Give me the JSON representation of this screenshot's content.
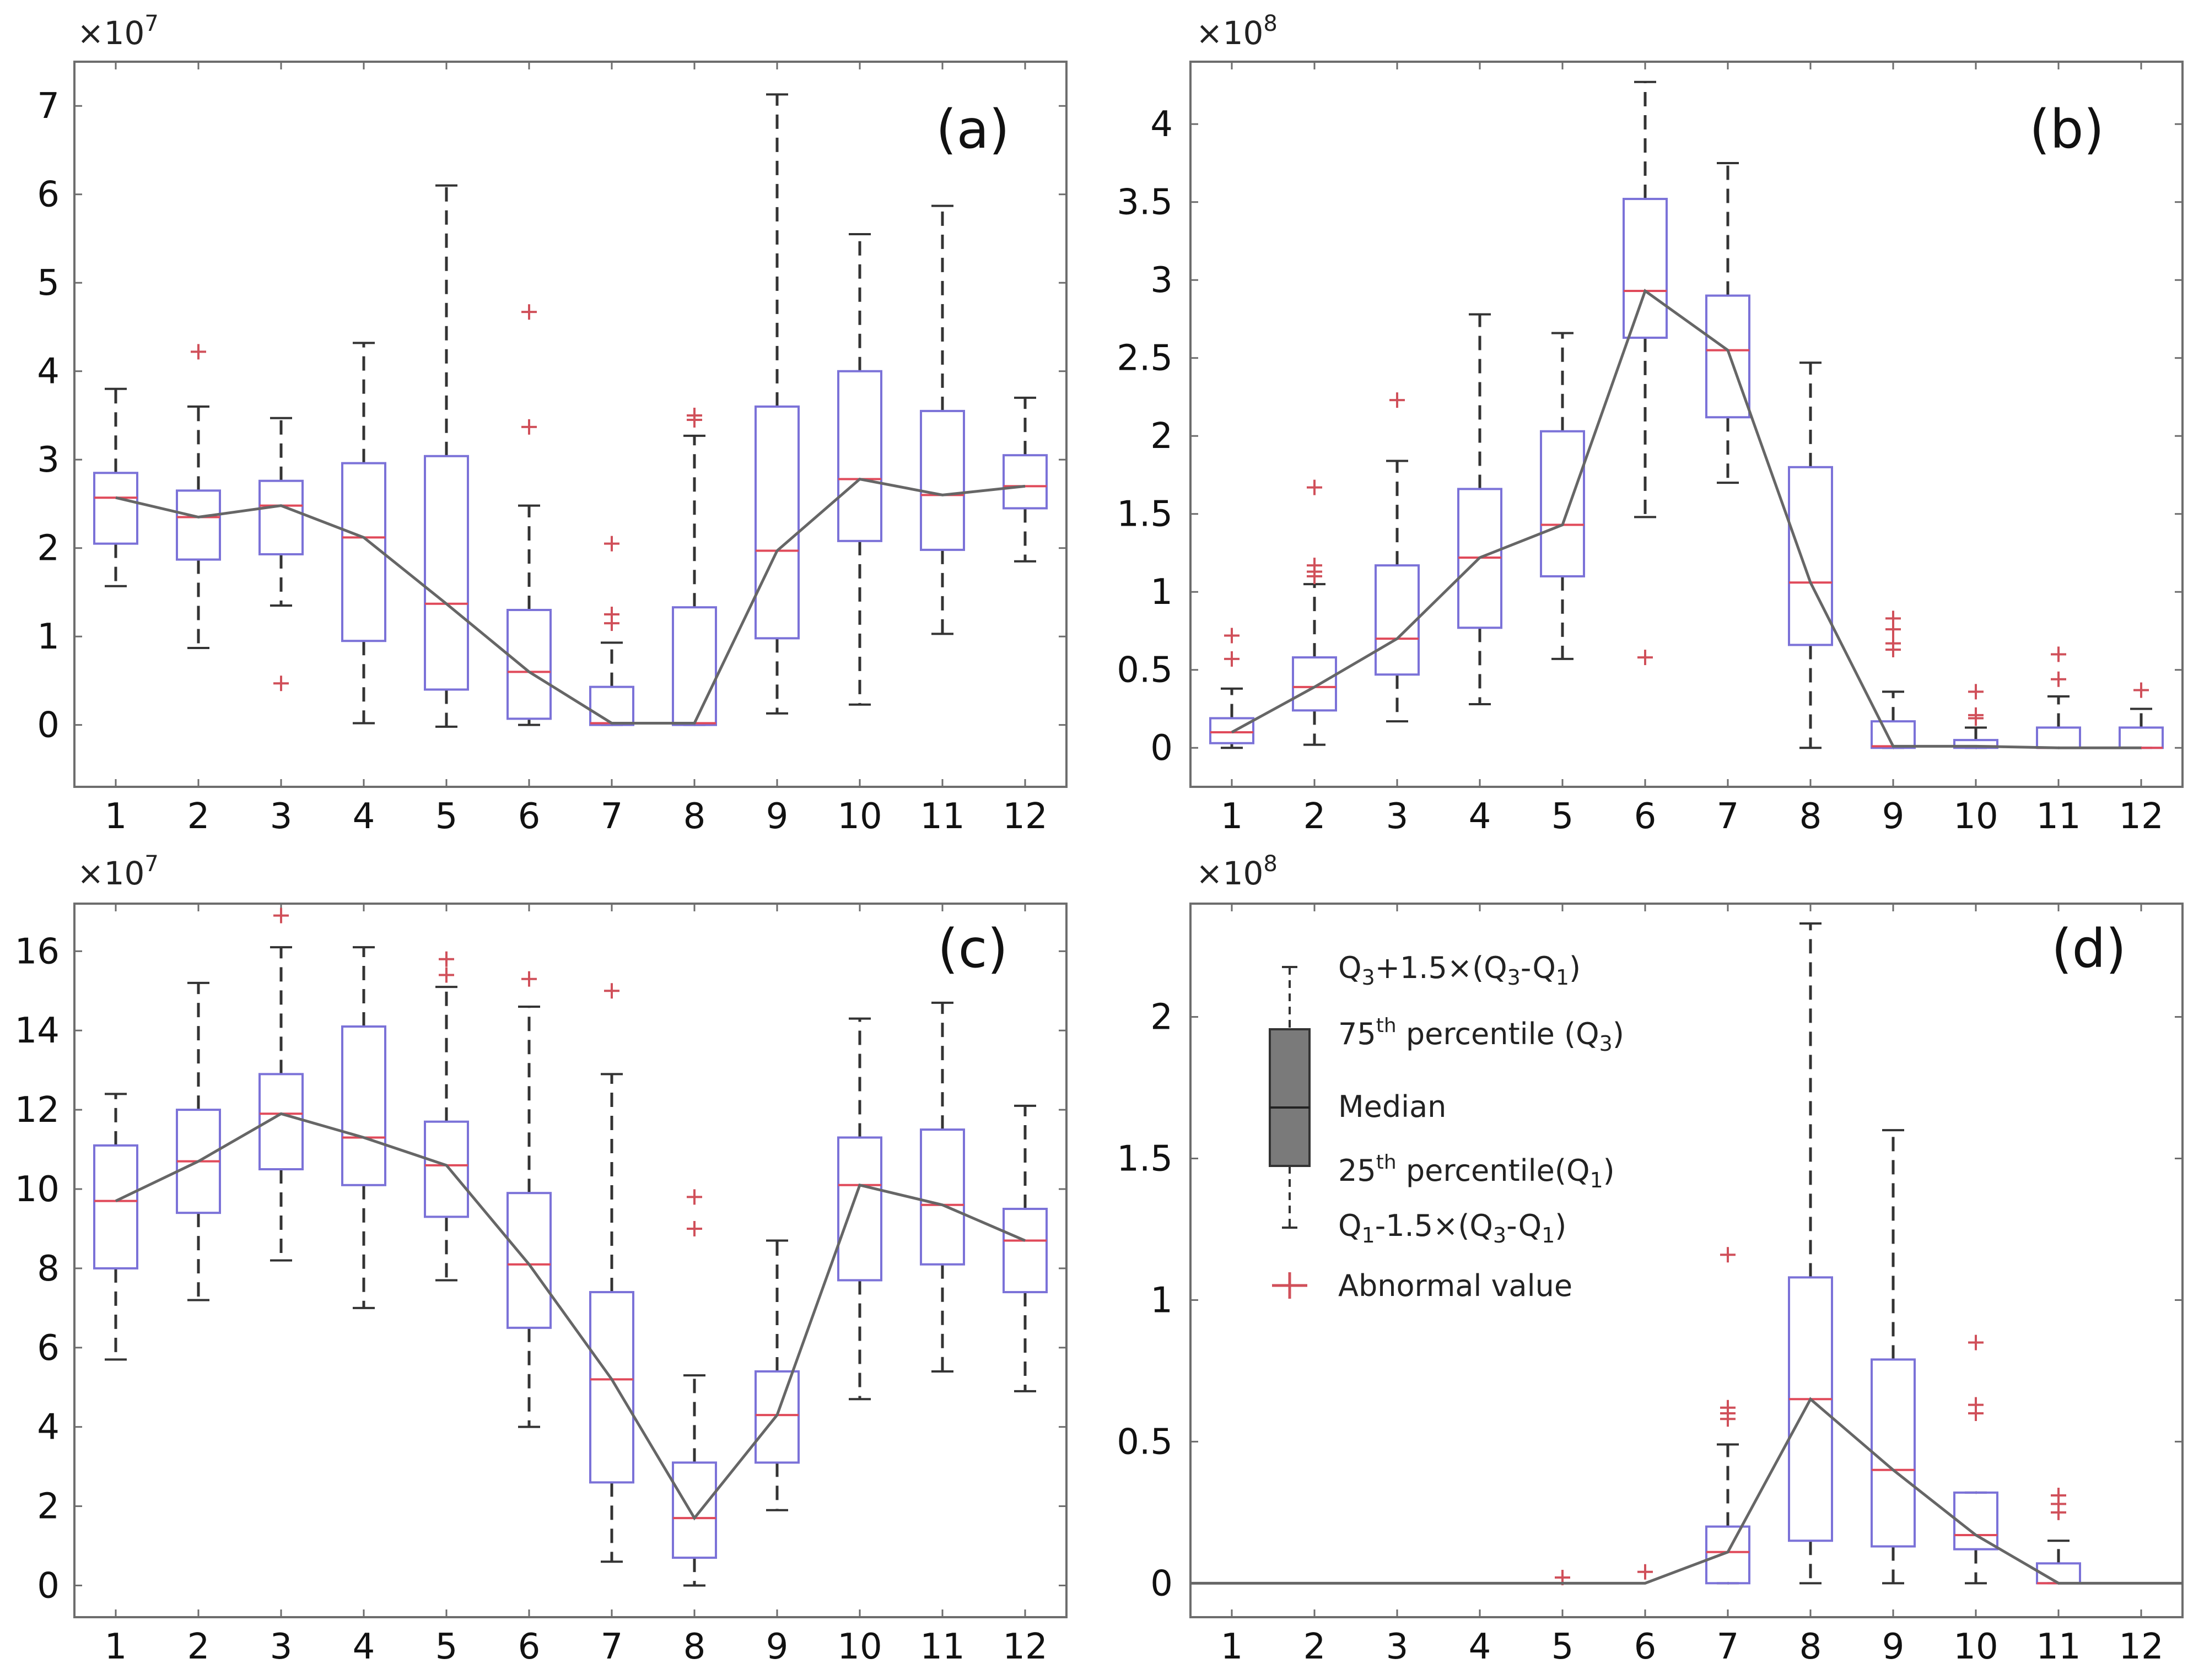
{
  "chart_data": [
    {
      "type": "box",
      "panel_label": "(a)",
      "exponent": "×10^7",
      "categories": [
        "1",
        "2",
        "3",
        "4",
        "5",
        "6",
        "7",
        "8",
        "9",
        "10",
        "11",
        "12"
      ],
      "ylim": [
        -0.7,
        7.5
      ],
      "yticks": [
        0,
        1,
        2,
        3,
        4,
        5,
        6,
        7
      ],
      "boxes": [
        {
          "whisker_low": 1.57,
          "q1": 2.05,
          "median": 2.57,
          "q3": 2.85,
          "whisker_high": 3.8,
          "outliers": []
        },
        {
          "whisker_low": 0.87,
          "q1": 1.87,
          "median": 2.35,
          "q3": 2.65,
          "whisker_high": 3.6,
          "outliers": [
            4.22
          ]
        },
        {
          "whisker_low": 1.35,
          "q1": 1.93,
          "median": 2.48,
          "q3": 2.76,
          "whisker_high": 3.47,
          "outliers": [
            0.47
          ]
        },
        {
          "whisker_low": 0.02,
          "q1": 0.95,
          "median": 2.12,
          "q3": 2.96,
          "whisker_high": 4.32,
          "outliers": []
        },
        {
          "whisker_low": -0.02,
          "q1": 0.4,
          "median": 1.37,
          "q3": 3.04,
          "whisker_high": 6.1,
          "outliers": []
        },
        {
          "whisker_low": 0.0,
          "q1": 0.07,
          "median": 0.6,
          "q3": 1.3,
          "whisker_high": 2.48,
          "outliers": [
            3.37,
            4.67
          ]
        },
        {
          "whisker_low": 0.0,
          "q1": 0.0,
          "median": 0.02,
          "q3": 0.43,
          "whisker_high": 0.93,
          "outliers": [
            1.15,
            1.25,
            2.05
          ]
        },
        {
          "whisker_low": 0.0,
          "q1": 0.0,
          "median": 0.02,
          "q3": 1.33,
          "whisker_high": 3.27,
          "outliers": [
            3.45,
            3.5
          ]
        },
        {
          "whisker_low": 0.13,
          "q1": 0.98,
          "median": 1.97,
          "q3": 3.6,
          "whisker_high": 7.13,
          "outliers": []
        },
        {
          "whisker_low": 0.23,
          "q1": 2.08,
          "median": 2.78,
          "q3": 4.0,
          "whisker_high": 5.55,
          "outliers": []
        },
        {
          "whisker_low": 1.03,
          "q1": 1.98,
          "median": 2.6,
          "q3": 3.55,
          "whisker_high": 5.87,
          "outliers": []
        },
        {
          "whisker_low": 1.85,
          "q1": 2.45,
          "median": 2.7,
          "q3": 3.05,
          "whisker_high": 3.7,
          "outliers": []
        }
      ]
    },
    {
      "type": "box",
      "panel_label": "(b)",
      "exponent": "×10^8",
      "categories": [
        "1",
        "2",
        "3",
        "4",
        "5",
        "6",
        "7",
        "8",
        "9",
        "10",
        "11",
        "12"
      ],
      "ylim": [
        -0.25,
        4.4
      ],
      "yticks": [
        0,
        0.5,
        1,
        1.5,
        2,
        2.5,
        3,
        3.5,
        4
      ],
      "ytick_labels": [
        "0",
        "0.5",
        "1",
        "1.5",
        "2",
        "2.5",
        "3",
        "3.5",
        "4"
      ],
      "boxes": [
        {
          "whisker_low": 0.0,
          "q1": 0.03,
          "median": 0.1,
          "q3": 0.19,
          "whisker_high": 0.38,
          "outliers": [
            0.57,
            0.72
          ]
        },
        {
          "whisker_low": 0.02,
          "q1": 0.24,
          "median": 0.39,
          "q3": 0.58,
          "whisker_high": 1.05,
          "outliers": [
            1.1,
            1.13,
            1.17,
            1.67
          ]
        },
        {
          "whisker_low": 0.17,
          "q1": 0.47,
          "median": 0.7,
          "q3": 1.17,
          "whisker_high": 1.84,
          "outliers": [
            2.23
          ]
        },
        {
          "whisker_low": 0.28,
          "q1": 0.77,
          "median": 1.22,
          "q3": 1.66,
          "whisker_high": 2.78,
          "outliers": []
        },
        {
          "whisker_low": 0.57,
          "q1": 1.1,
          "median": 1.43,
          "q3": 2.03,
          "whisker_high": 2.66,
          "outliers": []
        },
        {
          "whisker_low": 1.48,
          "q1": 2.63,
          "median": 2.93,
          "q3": 3.52,
          "whisker_high": 4.27,
          "outliers": [
            0.58
          ]
        },
        {
          "whisker_low": 1.7,
          "q1": 2.12,
          "median": 2.55,
          "q3": 2.9,
          "whisker_high": 3.75,
          "outliers": []
        },
        {
          "whisker_low": 0.0,
          "q1": 0.66,
          "median": 1.06,
          "q3": 1.8,
          "whisker_high": 2.47,
          "outliers": []
        },
        {
          "whisker_low": 0.0,
          "q1": 0.0,
          "median": 0.01,
          "q3": 0.17,
          "whisker_high": 0.36,
          "outliers": [
            0.63,
            0.67,
            0.76,
            0.83
          ]
        },
        {
          "whisker_low": 0.0,
          "q1": 0.0,
          "median": 0.01,
          "q3": 0.05,
          "whisker_high": 0.13,
          "outliers": [
            0.19,
            0.21,
            0.36
          ]
        },
        {
          "whisker_low": 0.0,
          "q1": 0.0,
          "median": 0.0,
          "q3": 0.13,
          "whisker_high": 0.33,
          "outliers": [
            0.44,
            0.6
          ]
        },
        {
          "whisker_low": 0.0,
          "q1": 0.0,
          "median": 0.0,
          "q3": 0.13,
          "whisker_high": 0.25,
          "outliers": [
            0.37
          ]
        }
      ]
    },
    {
      "type": "box",
      "panel_label": "(c)",
      "exponent": "×10^7",
      "categories": [
        "1",
        "2",
        "3",
        "4",
        "5",
        "6",
        "7",
        "8",
        "9",
        "10",
        "11",
        "12"
      ],
      "ylim": [
        -0.8,
        17.2
      ],
      "yticks": [
        0,
        2,
        4,
        6,
        8,
        10,
        12,
        14,
        16
      ],
      "boxes": [
        {
          "whisker_low": 5.7,
          "q1": 8.0,
          "median": 9.7,
          "q3": 11.1,
          "whisker_high": 12.4,
          "outliers": []
        },
        {
          "whisker_low": 7.2,
          "q1": 9.4,
          "median": 10.7,
          "q3": 12.0,
          "whisker_high": 15.2,
          "outliers": []
        },
        {
          "whisker_low": 8.2,
          "q1": 10.5,
          "median": 11.9,
          "q3": 12.9,
          "whisker_high": 16.1,
          "outliers": [
            16.9
          ]
        },
        {
          "whisker_low": 7.0,
          "q1": 10.1,
          "median": 11.3,
          "q3": 14.1,
          "whisker_high": 16.1,
          "outliers": []
        },
        {
          "whisker_low": 7.7,
          "q1": 9.3,
          "median": 10.6,
          "q3": 11.7,
          "whisker_high": 15.1,
          "outliers": [
            15.4,
            15.8
          ]
        },
        {
          "whisker_low": 4.0,
          "q1": 6.5,
          "median": 8.1,
          "q3": 9.9,
          "whisker_high": 14.6,
          "outliers": [
            15.3
          ]
        },
        {
          "whisker_low": 0.6,
          "q1": 2.6,
          "median": 5.2,
          "q3": 7.4,
          "whisker_high": 12.9,
          "outliers": [
            15.0
          ]
        },
        {
          "whisker_low": 0.0,
          "q1": 0.7,
          "median": 1.7,
          "q3": 3.1,
          "whisker_high": 5.3,
          "outliers": [
            9.0,
            9.8
          ]
        },
        {
          "whisker_low": 1.9,
          "q1": 3.1,
          "median": 4.3,
          "q3": 5.4,
          "whisker_high": 8.7,
          "outliers": []
        },
        {
          "whisker_low": 4.7,
          "q1": 7.7,
          "median": 10.1,
          "q3": 11.3,
          "whisker_high": 14.3,
          "outliers": []
        },
        {
          "whisker_low": 5.4,
          "q1": 8.1,
          "median": 9.6,
          "q3": 11.5,
          "whisker_high": 14.7,
          "outliers": []
        },
        {
          "whisker_low": 4.9,
          "q1": 7.4,
          "median": 8.7,
          "q3": 9.5,
          "whisker_high": 12.1,
          "outliers": []
        }
      ]
    },
    {
      "type": "box",
      "panel_label": "(d)",
      "exponent": "×10^8",
      "categories": [
        "1",
        "2",
        "3",
        "4",
        "5",
        "6",
        "7",
        "8",
        "9",
        "10",
        "11",
        "12"
      ],
      "ylim": [
        -0.12,
        2.4
      ],
      "yticks": [
        0,
        0.5,
        1,
        1.5,
        2
      ],
      "ytick_labels": [
        "0",
        "0.5",
        "1",
        "1.5",
        "2"
      ],
      "boxes": [
        {
          "whisker_low": 0,
          "q1": 0,
          "median": 0,
          "q3": 0,
          "whisker_high": 0,
          "outliers": []
        },
        {
          "whisker_low": 0,
          "q1": 0,
          "median": 0,
          "q3": 0,
          "whisker_high": 0,
          "outliers": []
        },
        {
          "whisker_low": 0,
          "q1": 0,
          "median": 0,
          "q3": 0,
          "whisker_high": 0,
          "outliers": []
        },
        {
          "whisker_low": 0,
          "q1": 0,
          "median": 0,
          "q3": 0,
          "whisker_high": 0,
          "outliers": []
        },
        {
          "whisker_low": 0,
          "q1": 0,
          "median": 0,
          "q3": 0,
          "whisker_high": 0,
          "outliers": [
            0.02
          ]
        },
        {
          "whisker_low": 0,
          "q1": 0,
          "median": 0,
          "q3": 0,
          "whisker_high": 0,
          "outliers": [
            0.04
          ]
        },
        {
          "whisker_low": 0.0,
          "q1": 0.0,
          "median": 0.11,
          "q3": 0.2,
          "whisker_high": 0.49,
          "outliers": [
            0.58,
            0.6,
            0.62,
            1.16
          ]
        },
        {
          "whisker_low": 0.0,
          "q1": 0.15,
          "median": 0.65,
          "q3": 1.08,
          "whisker_high": 2.33,
          "outliers": []
        },
        {
          "whisker_low": 0.0,
          "q1": 0.13,
          "median": 0.4,
          "q3": 0.79,
          "whisker_high": 1.6,
          "outliers": []
        },
        {
          "whisker_low": 0.0,
          "q1": 0.12,
          "median": 0.17,
          "q3": 0.32,
          "whisker_high": 0.32,
          "outliers": [
            0.6,
            0.63,
            0.85
          ]
        },
        {
          "whisker_low": 0.0,
          "q1": 0.0,
          "median": 0.0,
          "q3": 0.07,
          "whisker_high": 0.15,
          "outliers": [
            0.25,
            0.28,
            0.31
          ]
        },
        {
          "whisker_low": 0,
          "q1": 0,
          "median": 0,
          "q3": 0,
          "whisker_high": 0,
          "outliers": []
        }
      ],
      "legend": {
        "whisker_high_label": "Q3+1.5×(Q3-Q1)",
        "q3_label": "75th percentile (Q3)",
        "median_label": "Median",
        "q1_label": "25th percentile(Q1)",
        "whisker_low_label": "Q1-1.5×(Q3-Q1)",
        "outlier_label": "Abnormal value"
      }
    }
  ],
  "colors": {
    "box": "#7b72d8",
    "median": "#e04a5a",
    "whisker": "#333333",
    "outlier": "#d0505a",
    "trend": "#666666",
    "axis": "#6d6d6d",
    "legend_box": "#7a7a7a"
  }
}
